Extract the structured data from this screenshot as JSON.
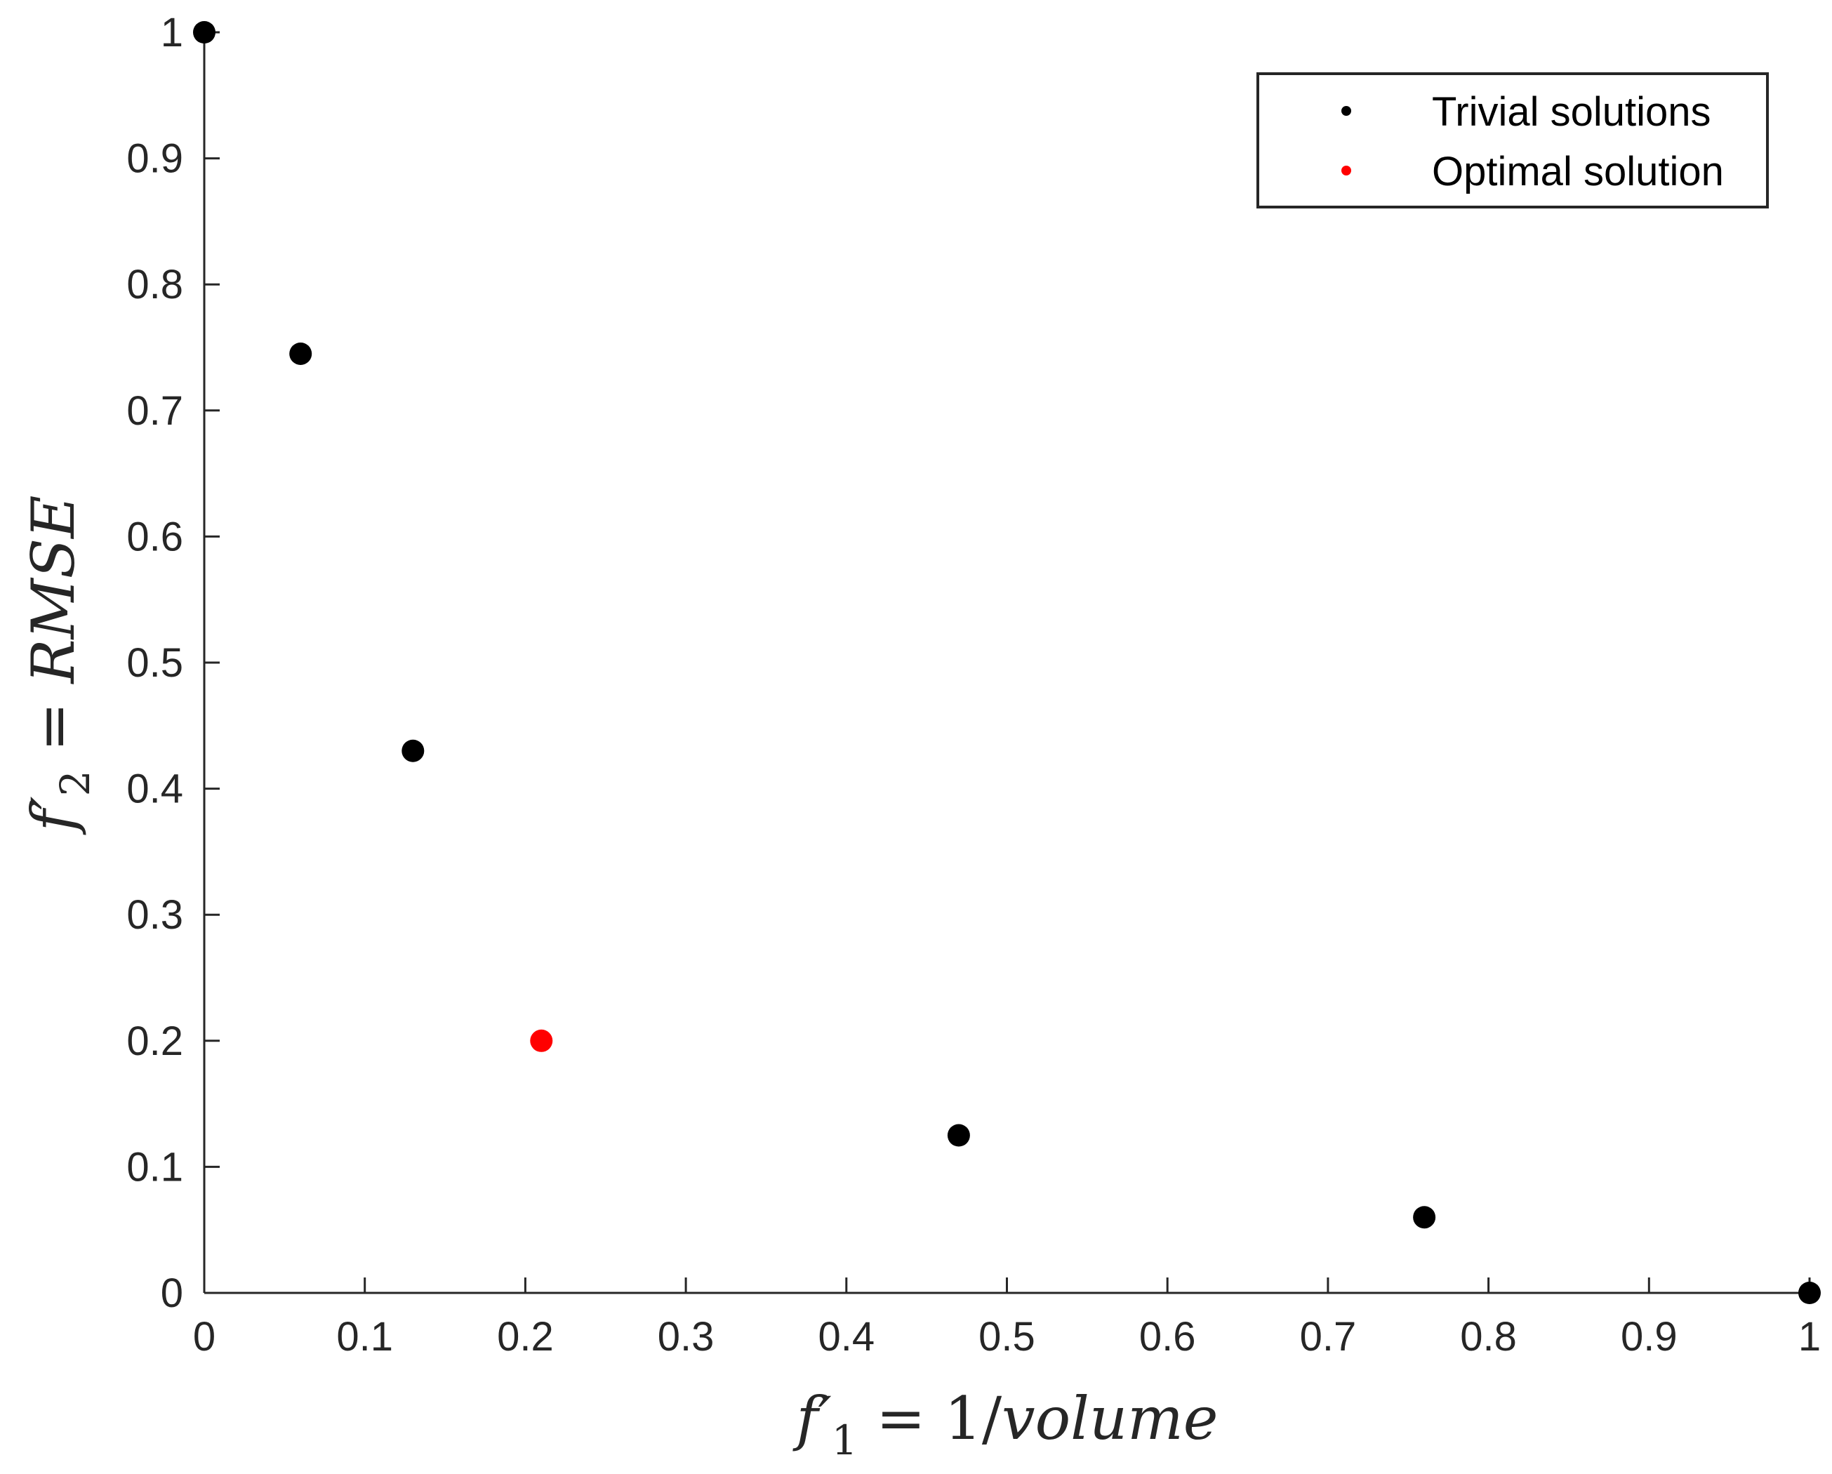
{
  "chart_data": {
    "type": "scatter",
    "title": "",
    "xlabel": "f′1 = 1/volume",
    "ylabel": "f′2 = RMSE",
    "xlim": [
      0,
      1
    ],
    "ylim": [
      0,
      1
    ],
    "xticks": [
      "0",
      "0.1",
      "0.2",
      "0.3",
      "0.4",
      "0.5",
      "0.6",
      "0.7",
      "0.8",
      "0.9",
      "1"
    ],
    "yticks": [
      "0",
      "0.1",
      "0.2",
      "0.3",
      "0.4",
      "0.5",
      "0.6",
      "0.7",
      "0.8",
      "0.9",
      "1"
    ],
    "grid": false,
    "legend_position": "top-right",
    "series": [
      {
        "name": "Trivial solutions",
        "color": "#000000",
        "points": [
          {
            "x": 0.0,
            "y": 1.0
          },
          {
            "x": 0.06,
            "y": 0.745
          },
          {
            "x": 0.13,
            "y": 0.43
          },
          {
            "x": 0.47,
            "y": 0.125
          },
          {
            "x": 0.76,
            "y": 0.06
          },
          {
            "x": 1.0,
            "y": 0.0
          }
        ]
      },
      {
        "name": "Optimal solution",
        "color": "#ff0000",
        "points": [
          {
            "x": 0.21,
            "y": 0.2
          }
        ]
      }
    ]
  }
}
